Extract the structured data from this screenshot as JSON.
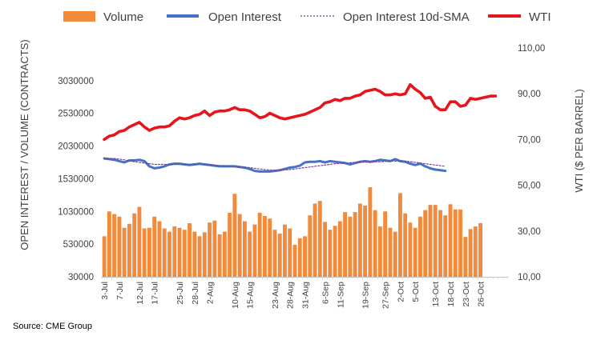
{
  "chart_data": {
    "type": "bar+line",
    "title": "",
    "legend": [
      "Volume",
      "Open Interest",
      "Open Interest 10d-SMA",
      "WTI"
    ],
    "colors": {
      "volume": "#F28A3C",
      "open_interest": "#4472C4",
      "sma": "#7B3F9A",
      "wti": "#E8141B"
    },
    "ylabel_left": "OPEN INTEREST / VOLUME (CONTRACTS)",
    "ylabel_right": "WTI ($ PER BARREL)",
    "ylim_left": [
      30000,
      3530000
    ],
    "ylim_right": [
      10,
      110
    ],
    "yticks_left": [
      "30000",
      "530000",
      "1030000",
      "1530000",
      "2030000",
      "2530000",
      "3030000"
    ],
    "yticks_right": [
      "10,00",
      "30,00",
      "50,00",
      "70,00",
      "90,00",
      "110,00"
    ],
    "n_slots": 81,
    "x_tick_labels": [
      {
        "i": 0,
        "label": "3-Jul"
      },
      {
        "i": 3,
        "label": "7-Jul"
      },
      {
        "i": 7,
        "label": "12-Jul"
      },
      {
        "i": 10,
        "label": "17-Jul"
      },
      {
        "i": 15,
        "label": "25-Jul"
      },
      {
        "i": 18,
        "label": "28-Jul"
      },
      {
        "i": 21,
        "label": "2-Aug"
      },
      {
        "i": 26,
        "label": "10-Aug"
      },
      {
        "i": 29,
        "label": "15-Aug"
      },
      {
        "i": 34,
        "label": "23-Aug"
      },
      {
        "i": 37,
        "label": "28-Aug"
      },
      {
        "i": 40,
        "label": "31-Aug"
      },
      {
        "i": 44,
        "label": "6-Sep"
      },
      {
        "i": 47,
        "label": "11-Sep"
      },
      {
        "i": 52,
        "label": "19-Sep"
      },
      {
        "i": 56,
        "label": "27-Sep"
      },
      {
        "i": 59,
        "label": "2-Oct"
      },
      {
        "i": 62,
        "label": "5-Oct"
      },
      {
        "i": 66,
        "label": "13-Oct"
      },
      {
        "i": 69,
        "label": "18-Oct"
      },
      {
        "i": 72,
        "label": "23-Oct"
      },
      {
        "i": 75,
        "label": "26-Oct"
      }
    ],
    "volume": [
      650000,
      1030000,
      990000,
      950000,
      780000,
      840000,
      1000000,
      1100000,
      770000,
      780000,
      950000,
      880000,
      770000,
      720000,
      800000,
      780000,
      750000,
      850000,
      720000,
      650000,
      710000,
      860000,
      890000,
      680000,
      720000,
      1010000,
      1300000,
      990000,
      880000,
      720000,
      830000,
      1010000,
      960000,
      920000,
      750000,
      690000,
      830000,
      770000,
      520000,
      620000,
      650000,
      970000,
      1150000,
      1190000,
      870000,
      750000,
      810000,
      880000,
      1020000,
      950000,
      1020000,
      1150000,
      1120000,
      1400000,
      1050000,
      800000,
      1030000,
      780000,
      720000,
      1310000,
      1000000,
      860000,
      780000,
      950000,
      1050000,
      1130000,
      1130000,
      1050000,
      970000,
      1140000,
      1060000,
      1060000,
      640000,
      760000,
      800000,
      850000
    ],
    "wti": [
      70,
      71.5,
      72,
      73.5,
      74,
      75.5,
      76.5,
      77.5,
      75.5,
      74,
      75,
      75.5,
      75.5,
      76,
      78,
      79.5,
      79,
      79.5,
      80.5,
      81,
      82.5,
      80.5,
      82,
      82.5,
      82.5,
      83,
      84,
      83,
      83,
      82.5,
      81,
      79.5,
      80,
      81.5,
      80.5,
      79.5,
      79,
      79.5,
      80,
      80.5,
      81,
      82,
      83,
      84,
      86,
      86.5,
      87.5,
      87,
      88,
      88,
      89,
      89.5,
      91,
      91.5,
      92,
      91,
      89.5,
      89.5,
      90,
      89.5,
      90,
      94,
      92,
      90.5,
      88,
      88.5,
      84.5,
      83,
      83,
      86.5,
      86.5,
      84.5,
      85,
      88,
      87.5,
      88,
      88.5,
      89,
      89
    ],
    "open_interest": [
      1840000,
      1830000,
      1820000,
      1800000,
      1780000,
      1810000,
      1810000,
      1820000,
      1800000,
      1720000,
      1690000,
      1700000,
      1720000,
      1750000,
      1760000,
      1760000,
      1750000,
      1740000,
      1750000,
      1760000,
      1750000,
      1740000,
      1730000,
      1720000,
      1720000,
      1720000,
      1720000,
      1710000,
      1700000,
      1680000,
      1650000,
      1640000,
      1640000,
      1640000,
      1650000,
      1660000,
      1680000,
      1700000,
      1710000,
      1730000,
      1780000,
      1790000,
      1790000,
      1800000,
      1780000,
      1800000,
      1790000,
      1780000,
      1770000,
      1750000,
      1770000,
      1790000,
      1800000,
      1790000,
      1800000,
      1820000,
      1810000,
      1800000,
      1830000,
      1800000,
      1790000,
      1760000,
      1740000,
      1760000,
      1720000,
      1690000,
      1670000,
      1660000,
      1650000
    ],
    "sma": [
      1850000,
      1840000,
      1840000,
      1830000,
      1820000,
      1800000,
      1790000,
      1780000,
      1770000,
      1760000,
      1750000,
      1750000,
      1750000,
      1750000,
      1750000,
      1750000,
      1750000,
      1750000,
      1750000,
      1750000,
      1745000,
      1740000,
      1735000,
      1730000,
      1725000,
      1720000,
      1715000,
      1710000,
      1705000,
      1700000,
      1690000,
      1680000,
      1670000,
      1665000,
      1660000,
      1660000,
      1665000,
      1670000,
      1680000,
      1690000,
      1700000,
      1710000,
      1720000,
      1730000,
      1740000,
      1750000,
      1760000,
      1765000,
      1770000,
      1775000,
      1780000,
      1785000,
      1785000,
      1785000,
      1790000,
      1790000,
      1795000,
      1800000,
      1800000,
      1800000,
      1800000,
      1790000,
      1780000,
      1770000,
      1760000,
      1750000,
      1740000,
      1730000,
      1720000
    ]
  },
  "source": "Source: CME Group"
}
